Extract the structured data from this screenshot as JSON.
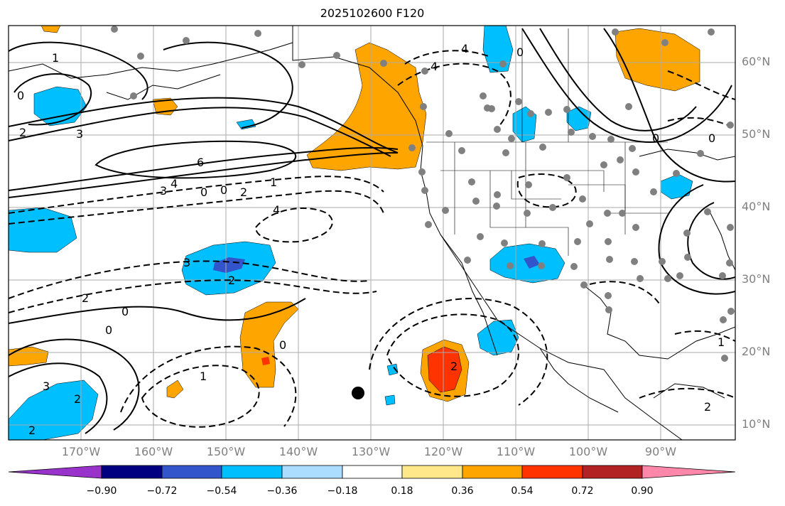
{
  "title": "2025102600 F120",
  "lat_labels": [
    "60°N",
    "50°N",
    "40°N",
    "30°N",
    "20°N",
    "10°N"
  ],
  "lon_labels": [
    "170°W",
    "160°W",
    "150°W",
    "140°W",
    "130°W",
    "120°W",
    "110°W",
    "100°W",
    "90°W"
  ],
  "colorbar": {
    "labels": [
      "−0.90",
      "−0.72",
      "−0.54",
      "−0.36",
      "−0.18",
      "0.18",
      "0.36",
      "0.54",
      "0.72",
      "0.90"
    ],
    "colors": [
      "#9933cc",
      "#000080",
      "#3355cc",
      "#00bfff",
      "#aaddff",
      "#ffffff",
      "#ffe88a",
      "#ffa500",
      "#ff3300",
      "#b22222",
      "#ff88aa"
    ]
  },
  "contour_labels": [
    "1",
    "0",
    "2",
    "3",
    "6",
    "4",
    "3",
    "4",
    "0",
    "0",
    "2",
    "1",
    "4",
    "3",
    "2",
    "2",
    "0",
    "0",
    "1",
    "2",
    "3",
    "2",
    "0",
    "2",
    "4",
    "0",
    "0",
    "1",
    "2",
    "0"
  ],
  "colors": {
    "positive_anomaly": "#ffa500",
    "strong_positive": "#ff3300",
    "negative_anomaly": "#00bfff",
    "strong_negative": "#3355cc"
  }
}
